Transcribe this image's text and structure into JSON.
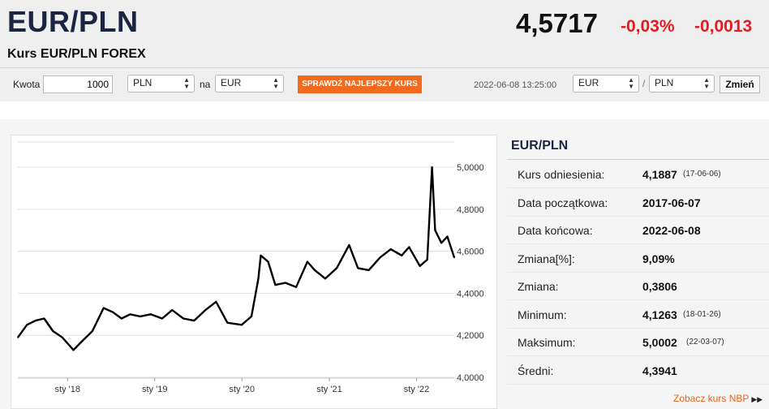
{
  "header": {
    "pair": "EUR/PLN",
    "subtitle": "Kurs EUR/PLN FOREX",
    "rate": "4,5717",
    "change_pct": "-0,03%",
    "change_abs": "-0,0013"
  },
  "converter": {
    "amount_label": "Kwota",
    "amount_value": "1000",
    "from_currency": "PLN",
    "na_label": "na",
    "to_currency": "EUR",
    "check_button": "SPRAWDŹ NAJLEPSZY KURS",
    "timestamp": "2022-06-08 13:25:00",
    "pair_from": "EUR",
    "slash": "/",
    "pair_to": "PLN",
    "change_button": "Zmień"
  },
  "info": {
    "title": "EUR/PLN",
    "rows": [
      {
        "key": "Kurs odniesienia:",
        "value": "4,1887",
        "date": "(17-06-06)"
      },
      {
        "key": "Data początkowa:",
        "value": "2017-06-07",
        "date": ""
      },
      {
        "key": "Data końcowa:",
        "value": "2022-06-08",
        "date": ""
      },
      {
        "key": "Zmiana[%]:",
        "value": "9,09%",
        "date": ""
      },
      {
        "key": "Zmiana:",
        "value": "0,3806",
        "date": ""
      },
      {
        "key": "Minimum:",
        "value": "4,1263",
        "date": "(18-01-26)"
      },
      {
        "key": "Maksimum:",
        "value": "5,0002",
        "date": "(22-03-07)"
      },
      {
        "key": "Średni:",
        "value": "4,3941",
        "date": ""
      }
    ],
    "nbp_link": "Zobacz kurs NBP",
    "nbp_icon": "double-chevron-right-icon"
  },
  "colors": {
    "accent_orange": "#f26a1b",
    "negative_red": "#e31b23",
    "title_navy": "#1b2440",
    "line": "#000000"
  },
  "chart_data": {
    "type": "line",
    "x_start": "2017-06-07",
    "x_end": "2022-06-08",
    "x_tick_labels": [
      "sty '18",
      "sty '19",
      "sty '20",
      "sty '21",
      "sty '22"
    ],
    "x_ticks": [
      "2018-01-01",
      "2019-01-01",
      "2020-01-01",
      "2021-01-01",
      "2022-01-01"
    ],
    "y_tick_labels": [
      "5,0000",
      "4,8000",
      "4,6000",
      "4,4000",
      "4,2000",
      "4,0000"
    ],
    "y_ticks": [
      5.0,
      4.8,
      4.6,
      4.4,
      4.2,
      4.0
    ],
    "ylim": [
      4.0,
      5.12
    ],
    "grid": true,
    "series": [
      {
        "x": [
          "2017-06-07",
          "2017-07-15",
          "2017-08-20",
          "2017-09-25",
          "2017-11-01",
          "2017-12-10",
          "2018-01-26",
          "2018-03-01",
          "2018-04-15",
          "2018-06-01",
          "2018-07-10",
          "2018-08-15",
          "2018-09-20",
          "2018-11-01",
          "2018-12-15",
          "2019-02-01",
          "2019-03-15",
          "2019-05-01",
          "2019-06-15",
          "2019-08-01",
          "2019-09-15",
          "2019-11-01",
          "2019-12-31",
          "2020-02-10",
          "2020-03-10",
          "2020-03-20",
          "2020-04-20",
          "2020-05-20",
          "2020-07-01",
          "2020-08-15",
          "2020-10-01",
          "2020-11-01",
          "2020-12-15",
          "2021-02-01",
          "2021-03-25",
          "2021-05-01",
          "2021-06-15",
          "2021-08-01",
          "2021-09-15",
          "2021-10-31",
          "2021-12-01",
          "2022-01-15",
          "2022-02-15",
          "2022-03-07",
          "2022-03-20",
          "2022-04-15",
          "2022-05-10",
          "2022-06-08"
        ],
        "y": [
          4.19,
          4.25,
          4.27,
          4.28,
          4.22,
          4.19,
          4.13,
          4.17,
          4.22,
          4.33,
          4.31,
          4.28,
          4.3,
          4.29,
          4.3,
          4.28,
          4.32,
          4.28,
          4.27,
          4.32,
          4.36,
          4.26,
          4.25,
          4.29,
          4.47,
          4.58,
          4.55,
          4.44,
          4.45,
          4.43,
          4.55,
          4.51,
          4.47,
          4.52,
          4.63,
          4.52,
          4.51,
          4.57,
          4.61,
          4.58,
          4.62,
          4.53,
          4.56,
          5.0,
          4.7,
          4.64,
          4.67,
          4.57
        ]
      }
    ]
  }
}
